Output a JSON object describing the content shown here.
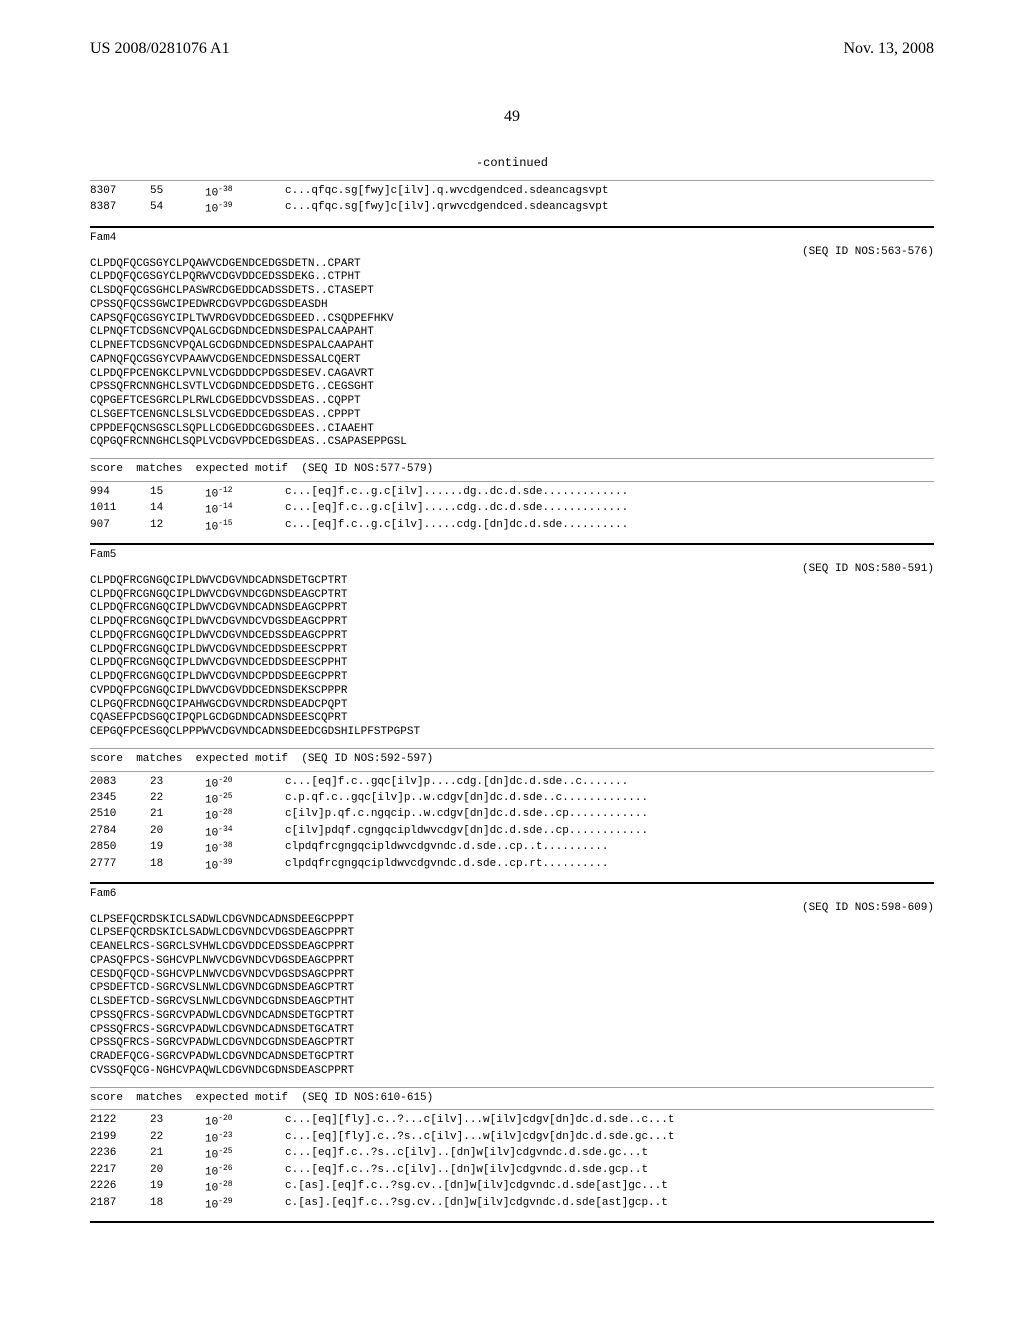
{
  "header": {
    "pub_number": "US 2008/0281076 A1",
    "pub_date": "Nov. 13, 2008"
  },
  "page_number": "49",
  "continued_label": "-continued",
  "top_rows": [
    {
      "score": "8307",
      "matches": "55",
      "exp": "10",
      "exp_sup": "-38",
      "motif": "c...qfqc.sg[fwy]c[ilv].q.wvcdgendced.sdeancagsvpt"
    },
    {
      "score": "8387",
      "matches": "54",
      "exp": "10",
      "exp_sup": "-39",
      "motif": "c...qfqc.sg[fwy]c[ilv].qrwvcdgendced.sdeancagsvpt"
    }
  ],
  "fam4": {
    "label": "Fam4",
    "seqid": "(SEQ ID NOS:563-576)",
    "seqs": [
      "CLPDQFQCGSGYCLPQAWVCDGENDCEDGSDETN..CPART",
      "CLPDQFQCGSGYCLPQRWVCDGVDDCEDSSDEKG..CTPHT",
      "CLSDQFQCGSGHCLPASWRCDGEDDCADSSDETS..CTASEPT",
      "CPSSQFQCSSGWCIPEDWRCDGVPDCGDGSDEASDH",
      "CAPSQFQCGSGYCIPLTWVRDGVDDCEDGSDEED..CSQDPEFHKV",
      "CLPNQFTCDSGNCVPQALGCDGDNDCEDNSDESPALCAAPAHT",
      "CLPNEFTCDSGNCVPQALGCDGDNDCEDNSDESPALCAAPAHT",
      "CAPNQFQCGSGYCVPAAWVCDGENDCEDNSDESSALCQERT",
      "CLPDQFPCENGKCLPVNLVCDGDDDCPDGSDESEV.CAGAVRT",
      "CPSSQFRCNNGHCLSVTLVCDGDNDCEDDSDETG..CEGSGHT",
      "CQPGEFTCESGRCLPLRWLCDGEDDCVDSSDEAS..CQPPT",
      "CLSGEFTCENGNCLSLSLVCDGEDDCEDGSDEAS..CPPPT",
      "CPPDEFQCNSGSCLSQPLLCDGEDDCGDGSDEES..CIAAEHT",
      "CQPGQFRCNNGHCLSQPLVCDGVPDCEDGSDEAS..CSAPASEPPGSL"
    ],
    "header": "score  matches  expected motif  (SEQ ID NOS:577-579)",
    "rows": [
      {
        "score": "994",
        "matches": "15",
        "exp": "10",
        "exp_sup": "-12",
        "motif": "c...[eq]f.c..g.c[ilv]......dg..dc.d.sde............."
      },
      {
        "score": "1011",
        "matches": "14",
        "exp": "10",
        "exp_sup": "-14",
        "motif": "c...[eq]f.c..g.c[ilv].....cdg..dc.d.sde............."
      },
      {
        "score": "907",
        "matches": "12",
        "exp": "10",
        "exp_sup": "-15",
        "motif": "c...[eq]f.c..g.c[ilv].....cdg.[dn]dc.d.sde.........."
      }
    ]
  },
  "fam5": {
    "label": "Fam5",
    "seqid": "(SEQ ID NOS:580-591)",
    "seqs": [
      "CLPDQFRCGNGQCIPLDWVCDGVNDCADNSDETGCPTRT",
      "CLPDQFRCGNGQCIPLDWVCDGVNDCGDNSDEAGCPTRT",
      "CLPDQFRCGNGQCIPLDWVCDGVNDCADNSDEAGCPPRT",
      "CLPDQFRCGNGQCIPLDWVCDGVNDCVDGSDEAGCPPRT",
      "CLPDQFRCGNGQCIPLDWVCDGVNDCEDSSDEAGCPPRT",
      "CLPDQFRCGNGQCIPLDWVCDGVNDCEDDSDEESCPPRT",
      "CLPDQFRCGNGQCIPLDWVCDGVNDCEDDSDEESCPPHT",
      "CLPDQFRCGNGQCIPLDWVCDGVNDCPDDSDEEGCPPRT",
      "CVPDQFPCGNGQCIPLDWVCDGVDDCEDNSDEKSCPPPR",
      "CLPGQFRCDNGQCIPAHWGCDGVNDCRDNSDEADCPQPT",
      "CQASEFPCDSGQCIPQPLGCDGDNDCADNSDEESCQPRT",
      "CEPGQFPCESGQCLPPPWVCDGVNDCADNSDEEDCGDSHILPFSTPGPST"
    ],
    "header": "score  matches  expected motif  (SEQ ID NOS:592-597)",
    "rows": [
      {
        "score": "2083",
        "matches": "23",
        "exp": "10",
        "exp_sup": "-20",
        "motif": "c...[eq]f.c..gqc[ilv]p....cdg.[dn]dc.d.sde..c......."
      },
      {
        "score": "2345",
        "matches": "22",
        "exp": "10",
        "exp_sup": "-25",
        "motif": "c.p.qf.c..gqc[ilv]p..w.cdgv[dn]dc.d.sde..c............."
      },
      {
        "score": "2510",
        "matches": "21",
        "exp": "10",
        "exp_sup": "-28",
        "motif": "c[ilv]p.qf.c.ngqcip..w.cdgv[dn]dc.d.sde..cp............"
      },
      {
        "score": "2784",
        "matches": "20",
        "exp": "10",
        "exp_sup": "-34",
        "motif": "c[ilv]pdqf.cgngqcipldwvcdgv[dn]dc.d.sde..cp............"
      },
      {
        "score": "2850",
        "matches": "19",
        "exp": "10",
        "exp_sup": "-38",
        "motif": "clpdqfrcgngqcipldwvcdgvndc.d.sde..cp..t.........."
      },
      {
        "score": "2777",
        "matches": "18",
        "exp": "10",
        "exp_sup": "-39",
        "motif": "clpdqfrcgngqcipldwvcdgvndc.d.sde..cp.rt.........."
      }
    ]
  },
  "fam6": {
    "label": "Fam6",
    "seqid": "(SEQ ID NOS:598-609)",
    "seqs": [
      "CLPSEFQCRDSKICLSADWLCDGVNDCADNSDEEGCPPPT",
      "CLPSEFQCRDSKICLSADWLCDGVNDCVDGSDEAGCPPRT",
      "CEANELRCS-SGRCLSVHWLCDGVDDCEDSSDEAGCPPRT",
      "CPASQFPCS-SGHCVPLNWVCDGVNDCVDGSDEAGCPPRT",
      "CESDQFQCD-SGHCVPLNWVCDGVNDCVDGSDSAGCPPRT",
      "CPSDEFTCD-SGRCVSLNWLCDGVNDCGDNSDEAGCPTRT",
      "CLSDEFTCD-SGRCVSLNWLCDGVNDCGDNSDEAGCPTHT",
      "CPSSQFRCS-SGRCVPADWLCDGVNDCADNSDETGCPTRT",
      "CPSSQFRCS-SGRCVPADWLCDGVNDCADNSDETGCATRT",
      "CPSSQFRCS-SGRCVPADWLCDGVNDCGDNSDEAGCPTRT",
      "CRADEFQCG-SGRCVPADWLCDGVNDCADNSDETGCPTRT",
      "CVSSQFQCG-NGHCVPAQWLCDGVNDCGDNSDEASCPPRT"
    ],
    "header": "score  matches  expected motif  (SEQ ID NOS:610-615)",
    "rows": [
      {
        "score": "2122",
        "matches": "23",
        "exp": "10",
        "exp_sup": "-20",
        "motif": "c...[eq][fly].c..?...c[ilv]...w[ilv]cdgv[dn]dc.d.sde..c...t"
      },
      {
        "score": "2199",
        "matches": "22",
        "exp": "10",
        "exp_sup": "-23",
        "motif": "c...[eq][fly].c..?s..c[ilv]...w[ilv]cdgv[dn]dc.d.sde.gc...t"
      },
      {
        "score": "2236",
        "matches": "21",
        "exp": "10",
        "exp_sup": "-25",
        "motif": "c...[eq]f.c..?s..c[ilv]..[dn]w[ilv]cdgvndc.d.sde.gc...t"
      },
      {
        "score": "2217",
        "matches": "20",
        "exp": "10",
        "exp_sup": "-26",
        "motif": "c...[eq]f.c..?s..c[ilv]..[dn]w[ilv]cdgvndc.d.sde.gcp..t"
      },
      {
        "score": "2226",
        "matches": "19",
        "exp": "10",
        "exp_sup": "-28",
        "motif": "c.[as].[eq]f.c..?sg.cv..[dn]w[ilv]cdgvndc.d.sde[ast]gc...t"
      },
      {
        "score": "2187",
        "matches": "18",
        "exp": "10",
        "exp_sup": "-29",
        "motif": "c.[as].[eq]f.c..?sg.cv..[dn]w[ilv]cdgvndc.d.sde[ast]gcp..t"
      }
    ]
  }
}
